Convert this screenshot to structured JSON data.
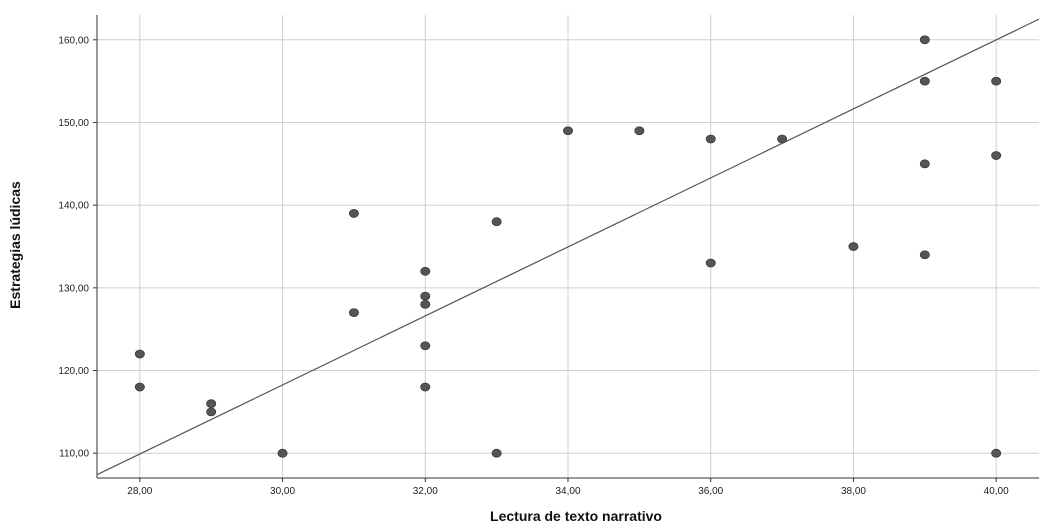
{
  "chart_data": {
    "type": "scatter",
    "xlabel": "Lectura de texto narrativo",
    "ylabel": "Estrategias lúdicas",
    "xlim": [
      27.4,
      40.6
    ],
    "ylim": [
      107,
      163
    ],
    "grid": true,
    "xticks": [
      28,
      30,
      32,
      34,
      36,
      38,
      40
    ],
    "xtick_labels": [
      "28,00",
      "30,00",
      "32,00",
      "34,00",
      "36,00",
      "38,00",
      "40,00"
    ],
    "yticks": [
      110,
      120,
      130,
      140,
      150,
      160
    ],
    "ytick_labels": [
      "110,00",
      "120,00",
      "130,00",
      "140,00",
      "150,00",
      "160,00"
    ],
    "points": [
      {
        "x": 28,
        "y": 122
      },
      {
        "x": 28,
        "y": 118
      },
      {
        "x": 29,
        "y": 116
      },
      {
        "x": 29,
        "y": 115
      },
      {
        "x": 30,
        "y": 110
      },
      {
        "x": 31,
        "y": 139
      },
      {
        "x": 31,
        "y": 127
      },
      {
        "x": 32,
        "y": 132
      },
      {
        "x": 32,
        "y": 129
      },
      {
        "x": 32,
        "y": 128
      },
      {
        "x": 32,
        "y": 123
      },
      {
        "x": 32,
        "y": 118
      },
      {
        "x": 33,
        "y": 138
      },
      {
        "x": 33,
        "y": 110
      },
      {
        "x": 34,
        "y": 149
      },
      {
        "x": 35,
        "y": 149
      },
      {
        "x": 36,
        "y": 148
      },
      {
        "x": 36,
        "y": 133
      },
      {
        "x": 37,
        "y": 148
      },
      {
        "x": 38,
        "y": 135
      },
      {
        "x": 39,
        "y": 160
      },
      {
        "x": 39,
        "y": 155
      },
      {
        "x": 39,
        "y": 145
      },
      {
        "x": 39,
        "y": 134
      },
      {
        "x": 40,
        "y": 155
      },
      {
        "x": 40,
        "y": 146
      },
      {
        "x": 40,
        "y": 110
      }
    ],
    "fit_line": {
      "x1": 27.4,
      "y1": 107.4,
      "x2": 40.6,
      "y2": 162.5
    },
    "colors": {
      "point": "#555555",
      "line": "#555555",
      "grid": "#cfcfcf",
      "axis": "#333333"
    }
  }
}
